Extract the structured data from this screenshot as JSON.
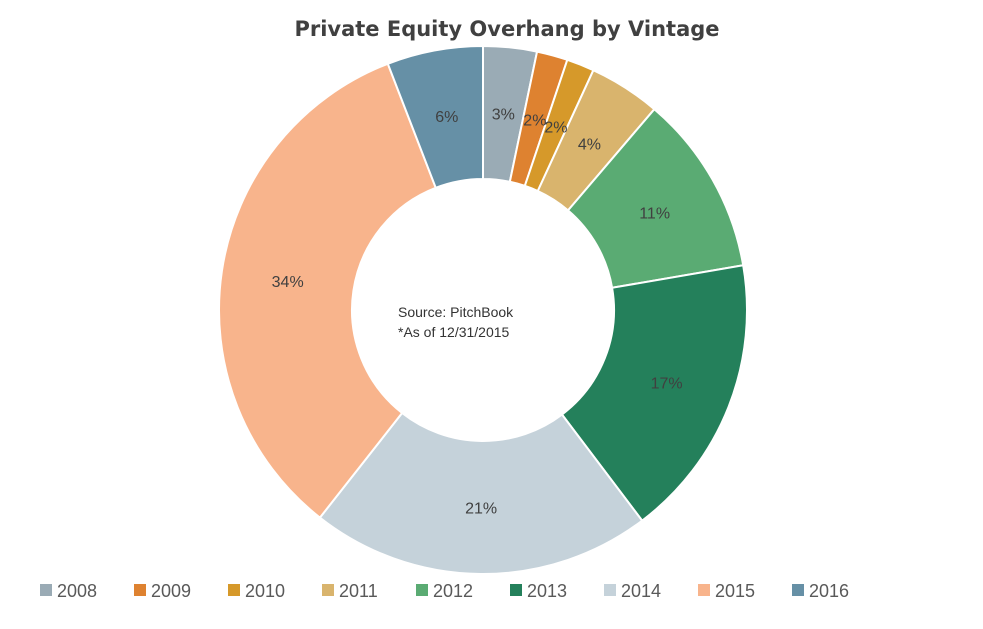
{
  "chart_data": {
    "type": "pie",
    "subtype": "donut",
    "title": "Private Equity Overhang by Vintage",
    "categories": [
      "2008",
      "2009",
      "2010",
      "2011",
      "2012",
      "2013",
      "2014",
      "2015",
      "2016"
    ],
    "values": [
      3.3,
      1.9,
      1.7,
      4.4,
      11.1,
      17.5,
      21.0,
      33.7,
      5.9
    ],
    "labels": [
      "3%",
      "2%",
      "2%",
      "4%",
      "11%",
      "17%",
      "21%",
      "34%",
      "6%"
    ],
    "colors": [
      "#9aabb5",
      "#de8230",
      "#d6992a",
      "#d9b46d",
      "#5aab73",
      "#24805b",
      "#c5d2da",
      "#f8b48c",
      "#6690a6"
    ],
    "center_text": [
      "Source: PitchBook",
      "*As of 12/31/2015"
    ],
    "legend_position": "bottom"
  }
}
